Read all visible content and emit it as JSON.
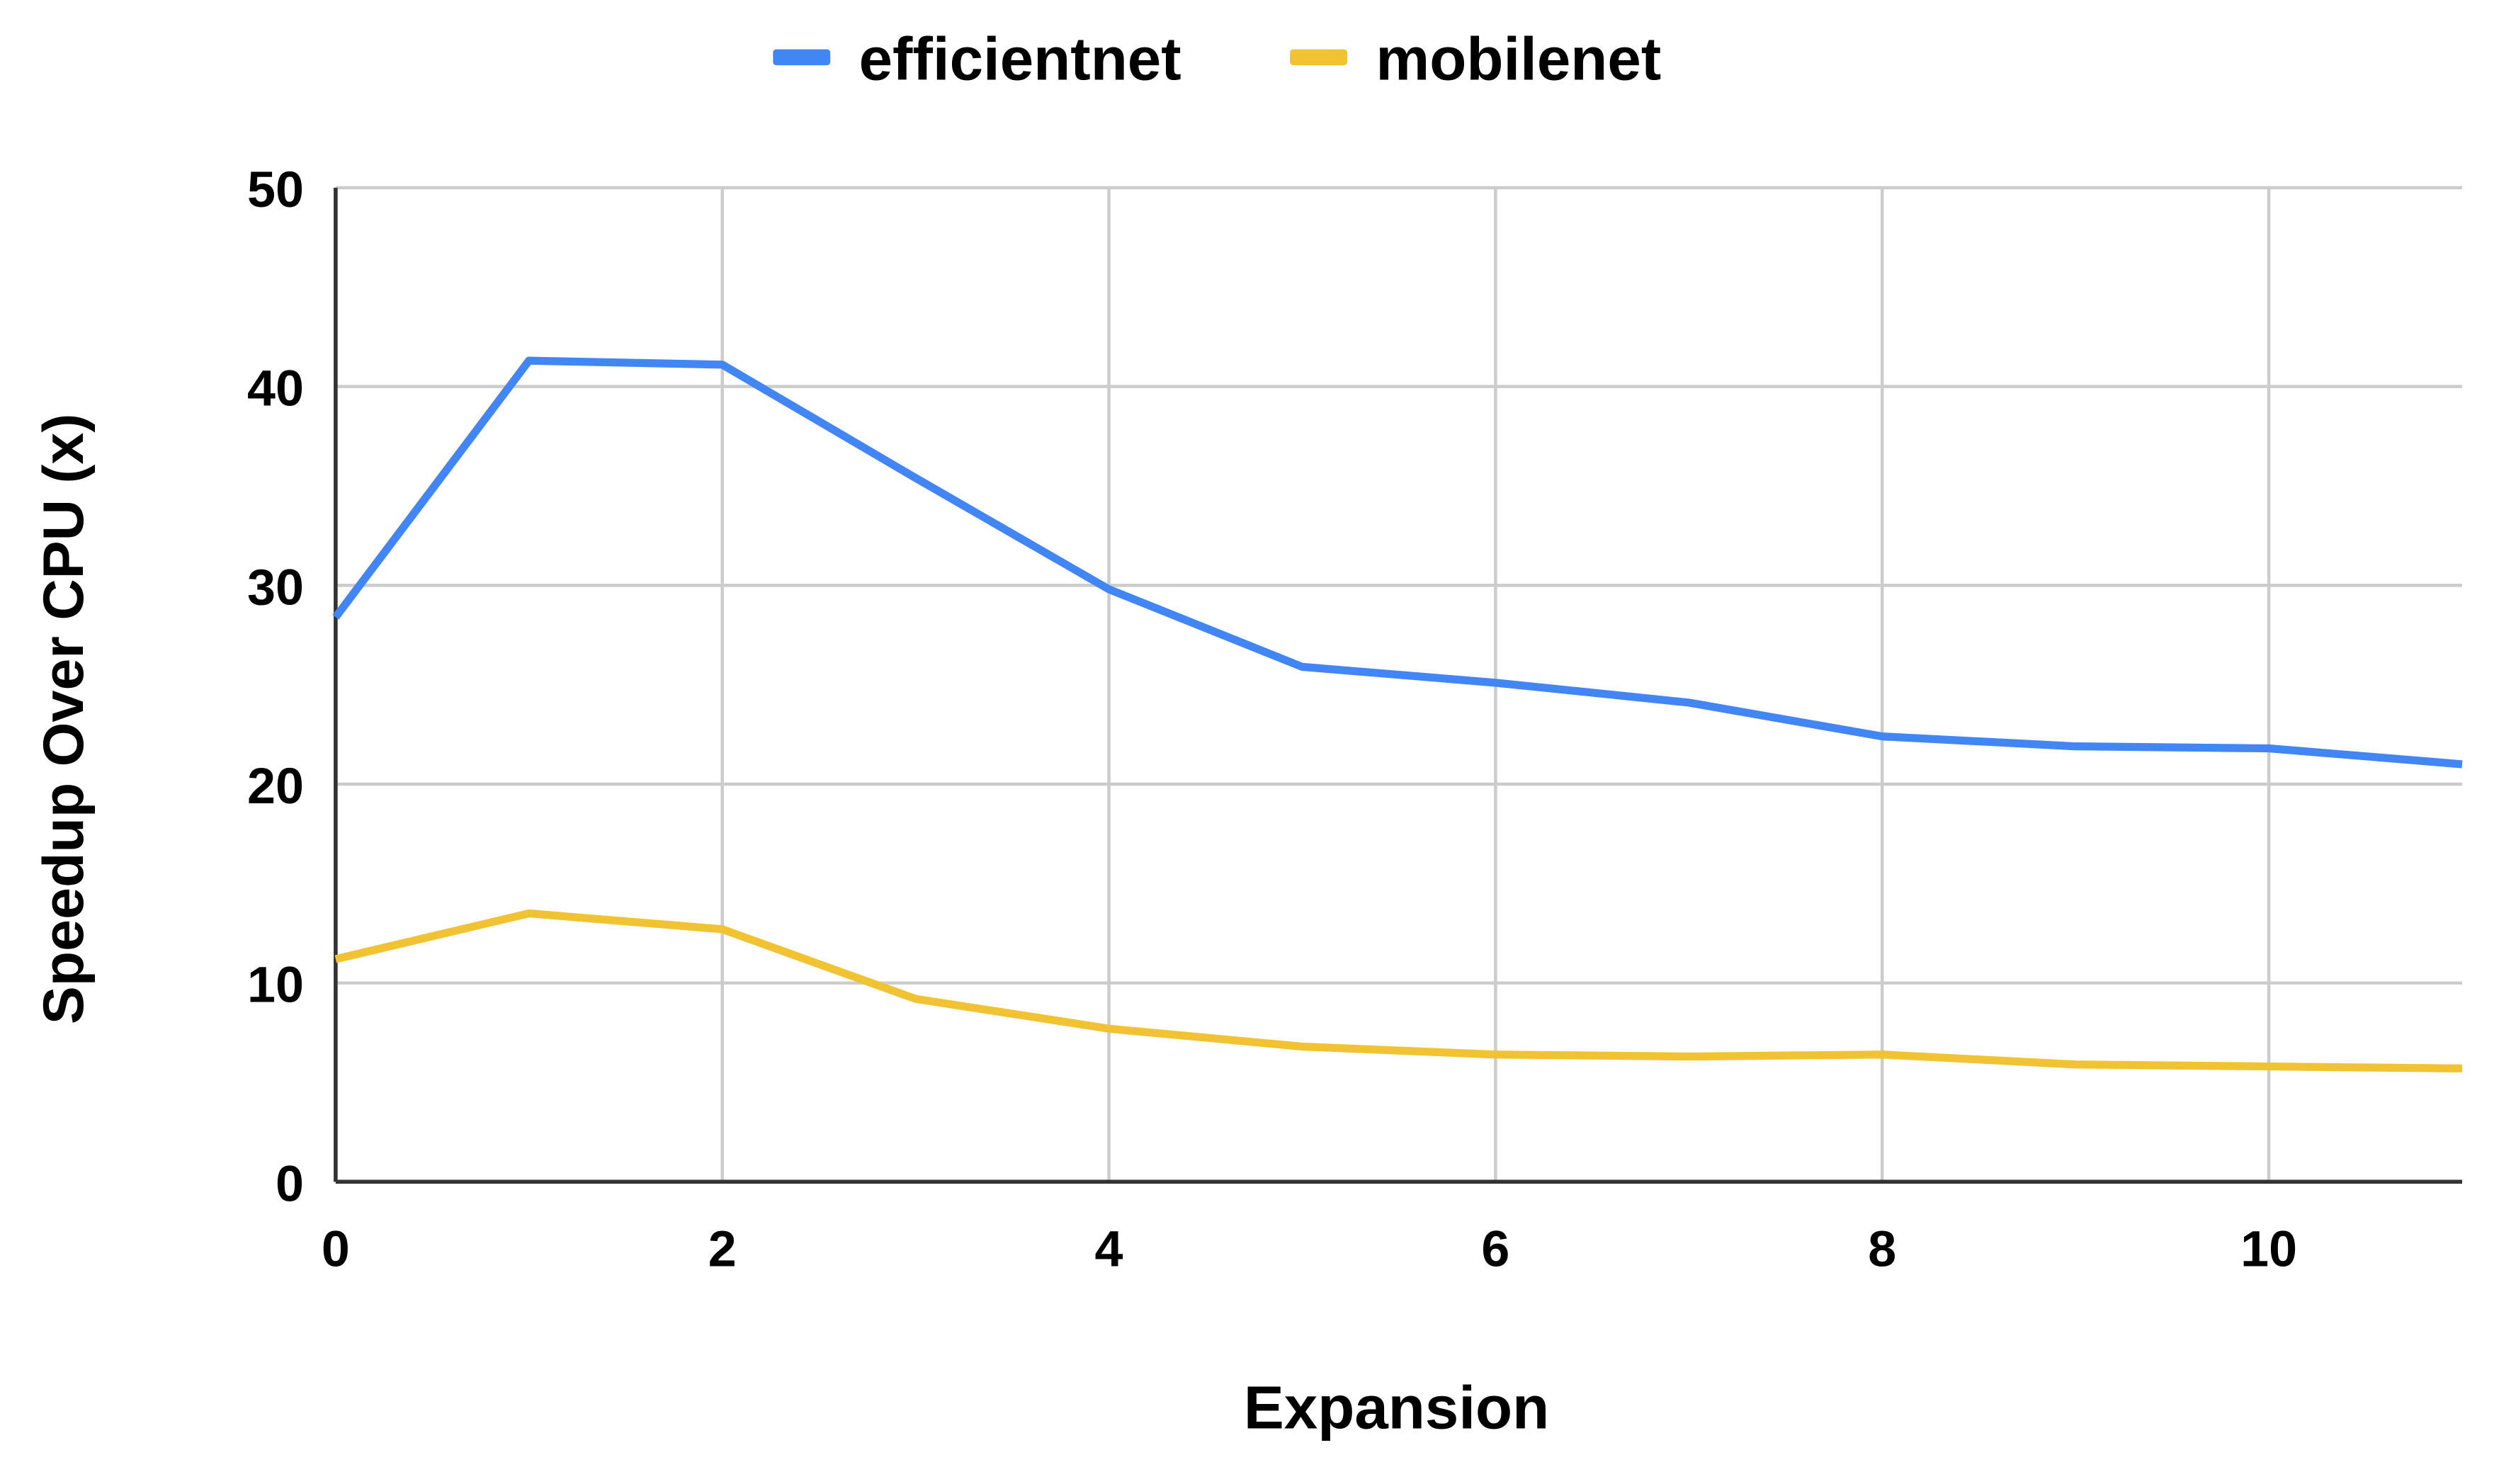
{
  "chart_data": {
    "type": "line",
    "x_label": "Expansion",
    "y_label": "Speedup Over CPU (x)",
    "x": [
      0,
      1,
      2,
      3,
      4,
      5,
      6,
      7,
      8,
      9,
      10,
      11
    ],
    "series": [
      {
        "name": "efficientnet",
        "color": "#4285f4",
        "values": [
          28.4,
          41.3,
          41.1,
          35.4,
          29.8,
          25.9,
          25.1,
          24.1,
          22.4,
          21.9,
          21.8,
          21.0
        ]
      },
      {
        "name": "mobilenet",
        "color": "#f1c232",
        "values": [
          11.2,
          13.5,
          12.7,
          9.2,
          7.7,
          6.8,
          6.4,
          6.3,
          6.4,
          5.9,
          5.8,
          5.7
        ]
      }
    ],
    "xlim": [
      0,
      11
    ],
    "xticks": [
      0,
      2,
      4,
      6,
      8,
      10
    ],
    "ylim": [
      0,
      50
    ],
    "yticks": [
      0,
      10,
      20,
      30,
      40,
      50
    ],
    "grid": true,
    "legend": "top"
  }
}
